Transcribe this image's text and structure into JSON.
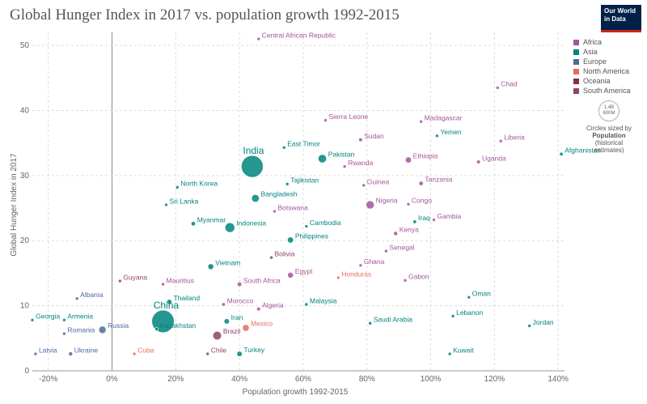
{
  "header": {
    "title": "Global Hunger Index in 2017 vs. population growth 1992-2015",
    "logo_line1": "Our World",
    "logo_line2": "in Data"
  },
  "legend": {
    "items": [
      {
        "label": "Africa",
        "color": "#a2559c"
      },
      {
        "label": "Asia",
        "color": "#00847e"
      },
      {
        "label": "Europe",
        "color": "#4c6a9c"
      },
      {
        "label": "North America",
        "color": "#e56e5a"
      },
      {
        "label": "Oceania",
        "color": "#883039"
      },
      {
        "label": "South America",
        "color": "#8c4569"
      }
    ],
    "size_max": "1.4B",
    "size_min": "600M",
    "size_note_1": "Circles sized by",
    "size_note_2": "Population",
    "size_note_3": "(historical",
    "size_note_4": "estimates)"
  },
  "chart_data": {
    "type": "scatter",
    "title": "Global Hunger Index in 2017 vs. population growth 1992-2015",
    "xlabel": "Population growth 1992-2015",
    "ylabel": "Global Hunger Index in 2017",
    "xlim": [
      -25,
      142
    ],
    "ylim": [
      0,
      52
    ],
    "x_ticks": [
      -20,
      0,
      20,
      40,
      60,
      80,
      100,
      120,
      140
    ],
    "x_tick_labels": [
      "-20%",
      "0%",
      "20%",
      "40%",
      "60%",
      "80%",
      "100%",
      "120%",
      "140%"
    ],
    "y_ticks": [
      0,
      10,
      20,
      30,
      40,
      50
    ],
    "y_tick_labels": [
      "0",
      "10",
      "20",
      "30",
      "40",
      "50"
    ],
    "grid": true,
    "legend_position": "right",
    "points": [
      {
        "label": "Central African Republic",
        "x": 46,
        "y": 51,
        "pop": 4.6,
        "region": "Africa"
      },
      {
        "label": "Chad",
        "x": 121,
        "y": 43.5,
        "pop": 14,
        "region": "Africa"
      },
      {
        "label": "Sierra Leone",
        "x": 67,
        "y": 38.5,
        "pop": 7,
        "region": "Africa"
      },
      {
        "label": "Madagascar",
        "x": 97,
        "y": 38.3,
        "pop": 24,
        "region": "Africa"
      },
      {
        "label": "Yemen",
        "x": 102,
        "y": 36.1,
        "pop": 27,
        "region": "Asia"
      },
      {
        "label": "Sudan",
        "x": 78,
        "y": 35.5,
        "pop": 40,
        "region": "Africa"
      },
      {
        "label": "Liberia",
        "x": 122,
        "y": 35.3,
        "pop": 4.5,
        "region": "Africa"
      },
      {
        "label": "East Timor",
        "x": 54,
        "y": 34.3,
        "pop": 1.2,
        "region": "Asia"
      },
      {
        "label": "Afghanistan",
        "x": 141,
        "y": 33.3,
        "pop": 34,
        "region": "Asia"
      },
      {
        "label": "Ethiopia",
        "x": 93,
        "y": 32.4,
        "pop": 100,
        "region": "Africa"
      },
      {
        "label": "Uganda",
        "x": 115,
        "y": 32.1,
        "pop": 40,
        "region": "Africa"
      },
      {
        "label": "Pakistan",
        "x": 66,
        "y": 32.6,
        "pop": 190,
        "region": "Asia"
      },
      {
        "label": "India",
        "x": 44,
        "y": 31.4,
        "pop": 1300,
        "region": "Asia"
      },
      {
        "label": "Rwanda",
        "x": 73,
        "y": 31.4,
        "pop": 11,
        "region": "Africa"
      },
      {
        "label": "North Korea",
        "x": 20.5,
        "y": 28.2,
        "pop": 25,
        "region": "Asia"
      },
      {
        "label": "Tajikistan",
        "x": 55,
        "y": 28.7,
        "pop": 8.5,
        "region": "Asia"
      },
      {
        "label": "Guinea",
        "x": 79,
        "y": 28.5,
        "pop": 12,
        "region": "Africa"
      },
      {
        "label": "Tanzania",
        "x": 97,
        "y": 28.8,
        "pop": 53,
        "region": "Africa"
      },
      {
        "label": "Bangladesh",
        "x": 45,
        "y": 26.5,
        "pop": 160,
        "region": "Asia"
      },
      {
        "label": "Nigeria",
        "x": 81,
        "y": 25.5,
        "pop": 180,
        "region": "Africa"
      },
      {
        "label": "Congo",
        "x": 93,
        "y": 25.6,
        "pop": 5,
        "region": "Africa"
      },
      {
        "label": "Sri Lanka",
        "x": 17,
        "y": 25.5,
        "pop": 21,
        "region": "Asia"
      },
      {
        "label": "Botswana",
        "x": 51,
        "y": 24.5,
        "pop": 2.2,
        "region": "Africa"
      },
      {
        "label": "Myanmar",
        "x": 25.5,
        "y": 22.6,
        "pop": 53,
        "region": "Asia"
      },
      {
        "label": "Indonesia",
        "x": 37,
        "y": 22,
        "pop": 255,
        "region": "Asia"
      },
      {
        "label": "Gambia",
        "x": 101,
        "y": 23.2,
        "pop": 2,
        "region": "Africa"
      },
      {
        "label": "Iraq",
        "x": 95,
        "y": 22.9,
        "pop": 36,
        "region": "Asia"
      },
      {
        "label": "Cambodia",
        "x": 61,
        "y": 22.2,
        "pop": 15.5,
        "region": "Asia"
      },
      {
        "label": "Kenya",
        "x": 89,
        "y": 21.1,
        "pop": 47,
        "region": "Africa"
      },
      {
        "label": "Philippines",
        "x": 56,
        "y": 20.1,
        "pop": 100,
        "region": "Asia"
      },
      {
        "label": "Senegal",
        "x": 86,
        "y": 18.4,
        "pop": 15,
        "region": "Africa"
      },
      {
        "label": "Bolivia",
        "x": 50,
        "y": 17.4,
        "pop": 11,
        "region": "South America"
      },
      {
        "label": "Ghana",
        "x": 78,
        "y": 16.2,
        "pop": 27,
        "region": "Africa"
      },
      {
        "label": "Vietnam",
        "x": 31,
        "y": 16,
        "pop": 92,
        "region": "Asia"
      },
      {
        "label": "Egypt",
        "x": 56,
        "y": 14.7,
        "pop": 90,
        "region": "Africa"
      },
      {
        "label": "Honduras",
        "x": 71,
        "y": 14.3,
        "pop": 8,
        "region": "North America"
      },
      {
        "label": "Gabon",
        "x": 92,
        "y": 13.9,
        "pop": 1.8,
        "region": "Africa"
      },
      {
        "label": "Guyana",
        "x": 2.5,
        "y": 13.8,
        "pop": 0.8,
        "region": "South America"
      },
      {
        "label": "South Africa",
        "x": 40,
        "y": 13.3,
        "pop": 55,
        "region": "Africa"
      },
      {
        "label": "Mauritius",
        "x": 16,
        "y": 13.3,
        "pop": 1.3,
        "region": "Africa"
      },
      {
        "label": "Albania",
        "x": -11,
        "y": 11.1,
        "pop": 2.9,
        "region": "Europe"
      },
      {
        "label": "Oman",
        "x": 112,
        "y": 11.3,
        "pop": 4.2,
        "region": "Asia"
      },
      {
        "label": "Thailand",
        "x": 18,
        "y": 10.6,
        "pop": 68,
        "region": "Asia"
      },
      {
        "label": "Malaysia",
        "x": 61,
        "y": 10.2,
        "pop": 30,
        "region": "Asia"
      },
      {
        "label": "Morocco",
        "x": 35,
        "y": 10.2,
        "pop": 35,
        "region": "Africa"
      },
      {
        "label": "Algeria",
        "x": 46,
        "y": 9.5,
        "pop": 40,
        "region": "Africa"
      },
      {
        "label": "China",
        "x": 16,
        "y": 7.6,
        "pop": 1370,
        "region": "Asia"
      },
      {
        "label": "Georgia",
        "x": -25,
        "y": 7.8,
        "pop": 3.7,
        "region": "Asia"
      },
      {
        "label": "Armenia",
        "x": -15,
        "y": 7.8,
        "pop": 3,
        "region": "Asia"
      },
      {
        "label": "Iran",
        "x": 36,
        "y": 7.6,
        "pop": 79,
        "region": "Asia"
      },
      {
        "label": "Lebanon",
        "x": 107,
        "y": 8.4,
        "pop": 5.9,
        "region": "Asia"
      },
      {
        "label": "Saudi Arabia",
        "x": 81,
        "y": 7.3,
        "pop": 31,
        "region": "Asia"
      },
      {
        "label": "Jordan",
        "x": 131,
        "y": 6.9,
        "pop": 9.3,
        "region": "Asia"
      },
      {
        "label": "Russia",
        "x": -3,
        "y": 6.3,
        "pop": 144,
        "region": "Europe"
      },
      {
        "label": "Mexico",
        "x": 42,
        "y": 6.6,
        "pop": 125,
        "region": "North America"
      },
      {
        "label": "Brazil",
        "x": 33,
        "y": 5.4,
        "pop": 205,
        "region": "South America"
      },
      {
        "label": "Kazakhstan",
        "x": 14,
        "y": 6.4,
        "pop": 17.5,
        "region": "Asia"
      },
      {
        "label": "Romania",
        "x": -15,
        "y": 5.7,
        "pop": 20,
        "region": "Europe"
      },
      {
        "label": "Latvia",
        "x": -24,
        "y": 2.6,
        "pop": 2,
        "region": "Europe"
      },
      {
        "label": "Ukraine",
        "x": -13,
        "y": 2.6,
        "pop": 45,
        "region": "Europe"
      },
      {
        "label": "Cuba",
        "x": 7,
        "y": 2.6,
        "pop": 11.4,
        "region": "North America"
      },
      {
        "label": "Chile",
        "x": 30,
        "y": 2.6,
        "pop": 18,
        "region": "South America"
      },
      {
        "label": "Turkey",
        "x": 40,
        "y": 2.6,
        "pop": 78,
        "region": "Asia"
      },
      {
        "label": "Kuwait",
        "x": 106,
        "y": 2.6,
        "pop": 3.9,
        "region": "Asia"
      }
    ]
  }
}
